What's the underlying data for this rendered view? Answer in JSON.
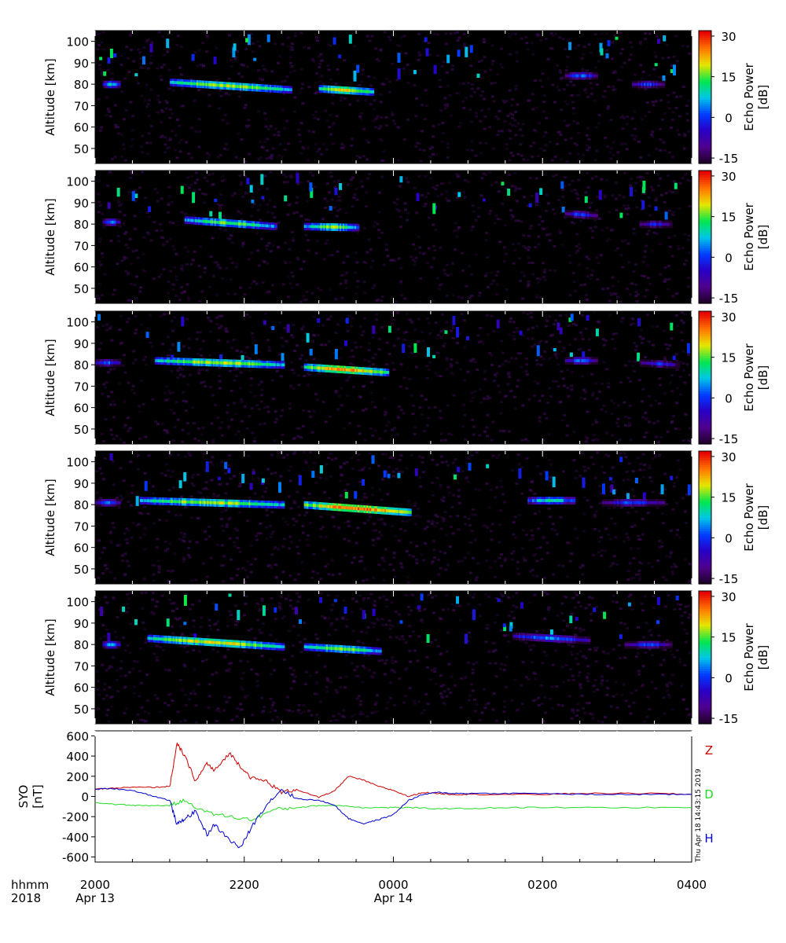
{
  "colors": {
    "background": "#000000",
    "noise": "#3a0a52",
    "Z": "#cc0000",
    "D": "#22dd22",
    "H": "#0000cc"
  },
  "radar": {
    "ylabel": "Altitude [km]",
    "yticks": [
      50,
      60,
      70,
      80,
      90,
      100
    ],
    "ylim": [
      43,
      105
    ],
    "colorbar_label": "Echo Power\n[dB]",
    "colorbar_ticks": [
      30,
      15,
      0,
      -15
    ],
    "colorbar_range": [
      -17,
      32
    ],
    "colormap": "rainbow (purple-blue-cyan-green-yellow-red)"
  },
  "time_axis": {
    "row1_label": "hhmm",
    "row2_label": "2018",
    "ticks": [
      "2000",
      "2200",
      "0000",
      "0200",
      "0400"
    ],
    "dates": [
      "Apr 13",
      "",
      "Apr 14",
      "",
      ""
    ],
    "range_hours": [
      20,
      28
    ]
  },
  "timestamp": "Thu Apr 18 14:43:15 2019",
  "chart_data": [
    {
      "type": "heatmap",
      "panel": 1,
      "ylabel": "Altitude [km]",
      "colorbar": "Echo Power [dB]",
      "echo_layers": [
        {
          "start_h": 20.1,
          "end_h": 20.3,
          "alt_start_km": 80,
          "alt_end_km": 80,
          "peak_db": 8
        },
        {
          "start_h": 21.0,
          "end_h": 22.6,
          "alt_start_km": 81,
          "alt_end_km": 77.5,
          "peak_db": 18
        },
        {
          "start_h": 23.0,
          "end_h": 23.7,
          "alt_start_km": 78,
          "alt_end_km": 76.5,
          "peak_db": 20
        },
        {
          "start_h": 26.3,
          "end_h": 26.7,
          "alt_start_km": 84,
          "alt_end_km": 84,
          "peak_db": 2
        },
        {
          "start_h": 27.2,
          "end_h": 27.6,
          "alt_start_km": 80,
          "alt_end_km": 80,
          "peak_db": 0
        }
      ]
    },
    {
      "type": "heatmap",
      "panel": 2,
      "ylabel": "Altitude [km]",
      "colorbar": "Echo Power [dB]",
      "echo_layers": [
        {
          "start_h": 20.1,
          "end_h": 20.3,
          "alt_start_km": 81,
          "alt_end_km": 81,
          "peak_db": 5
        },
        {
          "start_h": 21.2,
          "end_h": 22.4,
          "alt_start_km": 82,
          "alt_end_km": 79,
          "peak_db": 15
        },
        {
          "start_h": 22.8,
          "end_h": 23.5,
          "alt_start_km": 79,
          "alt_end_km": 78.5,
          "peak_db": 16
        },
        {
          "start_h": 26.3,
          "end_h": 26.7,
          "alt_start_km": 85,
          "alt_end_km": 84,
          "peak_db": 0
        },
        {
          "start_h": 27.3,
          "end_h": 27.7,
          "alt_start_km": 80,
          "alt_end_km": 80,
          "peak_db": -2
        }
      ]
    },
    {
      "type": "heatmap",
      "panel": 3,
      "ylabel": "Altitude [km]",
      "colorbar": "Echo Power [dB]",
      "echo_layers": [
        {
          "start_h": 20.0,
          "end_h": 20.3,
          "alt_start_km": 81,
          "alt_end_km": 81,
          "peak_db": 2
        },
        {
          "start_h": 20.8,
          "end_h": 22.5,
          "alt_start_km": 82,
          "alt_end_km": 80,
          "peak_db": 18
        },
        {
          "start_h": 22.8,
          "end_h": 23.9,
          "alt_start_km": 79,
          "alt_end_km": 76.5,
          "peak_db": 24
        },
        {
          "start_h": 26.3,
          "end_h": 26.7,
          "alt_start_km": 82,
          "alt_end_km": 82,
          "peak_db": 2
        },
        {
          "start_h": 27.3,
          "end_h": 27.8,
          "alt_start_km": 81,
          "alt_end_km": 80,
          "peak_db": -2
        }
      ]
    },
    {
      "type": "heatmap",
      "panel": 4,
      "ylabel": "Altitude [km]",
      "colorbar": "Echo Power [dB]",
      "echo_layers": [
        {
          "start_h": 20.0,
          "end_h": 20.3,
          "alt_start_km": 81,
          "alt_end_km": 81,
          "peak_db": 2
        },
        {
          "start_h": 20.6,
          "end_h": 22.5,
          "alt_start_km": 82,
          "alt_end_km": 80,
          "peak_db": 18
        },
        {
          "start_h": 22.8,
          "end_h": 24.2,
          "alt_start_km": 80,
          "alt_end_km": 76.5,
          "peak_db": 26
        },
        {
          "start_h": 25.8,
          "end_h": 26.4,
          "alt_start_km": 82,
          "alt_end_km": 82,
          "peak_db": 10
        },
        {
          "start_h": 26.8,
          "end_h": 27.6,
          "alt_start_km": 81,
          "alt_end_km": 81,
          "peak_db": 0
        }
      ]
    },
    {
      "type": "heatmap",
      "panel": 5,
      "ylabel": "Altitude [km]",
      "colorbar": "Echo Power [dB]",
      "echo_layers": [
        {
          "start_h": 20.1,
          "end_h": 20.3,
          "alt_start_km": 80,
          "alt_end_km": 80,
          "peak_db": 8
        },
        {
          "start_h": 20.7,
          "end_h": 22.5,
          "alt_start_km": 83,
          "alt_end_km": 79,
          "peak_db": 20
        },
        {
          "start_h": 22.8,
          "end_h": 23.8,
          "alt_start_km": 79,
          "alt_end_km": 77,
          "peak_db": 16
        },
        {
          "start_h": 25.6,
          "end_h": 26.6,
          "alt_start_km": 84,
          "alt_end_km": 82,
          "peak_db": 4
        },
        {
          "start_h": 27.1,
          "end_h": 27.7,
          "alt_start_km": 80,
          "alt_end_km": 80,
          "peak_db": 0
        }
      ]
    },
    {
      "type": "line",
      "panel": 6,
      "ylabel": "SYO\n[nT]",
      "ylim": [
        -650,
        650
      ],
      "yticks": [
        600,
        400,
        200,
        0,
        -200,
        -400,
        -600
      ],
      "series": [
        {
          "name": "Z",
          "x_hours": [
            20.0,
            20.2,
            20.5,
            20.8,
            21.0,
            21.1,
            21.2,
            21.35,
            21.5,
            21.6,
            21.8,
            21.95,
            22.1,
            22.3,
            22.5,
            22.7,
            23.0,
            23.2,
            23.4,
            23.6,
            23.8,
            24.0,
            24.2,
            24.4,
            24.6,
            24.8,
            25.0,
            25.5,
            26.0,
            26.5,
            27.0,
            27.5,
            28.0
          ],
          "values": [
            70,
            80,
            90,
            90,
            100,
            520,
            400,
            150,
            330,
            250,
            430,
            300,
            180,
            150,
            40,
            70,
            -10,
            50,
            200,
            160,
            100,
            60,
            0,
            40,
            30,
            20,
            20,
            20,
            20,
            30,
            30,
            30,
            20
          ]
        },
        {
          "name": "D",
          "x_hours": [
            20.0,
            20.3,
            20.6,
            21.0,
            21.2,
            21.5,
            21.8,
            22.1,
            22.4,
            22.7,
            23.0,
            23.3,
            23.6,
            23.9,
            24.2,
            24.5,
            25.0,
            25.5,
            26.0,
            27.0,
            28.0
          ],
          "values": [
            -60,
            -80,
            -90,
            -90,
            -40,
            -160,
            -200,
            -230,
            -130,
            -110,
            -90,
            -90,
            -110,
            -110,
            -110,
            -120,
            -120,
            -110,
            -110,
            -110,
            -110
          ]
        },
        {
          "name": "H",
          "x_hours": [
            20.0,
            20.2,
            20.5,
            20.8,
            21.0,
            21.1,
            21.2,
            21.35,
            21.5,
            21.6,
            21.8,
            21.95,
            22.1,
            22.3,
            22.5,
            22.7,
            23.0,
            23.2,
            23.4,
            23.6,
            23.8,
            24.0,
            24.2,
            24.4,
            24.6,
            24.8,
            25.0,
            25.5,
            26.0,
            26.5,
            27.0,
            27.5,
            28.0
          ],
          "values": [
            70,
            80,
            60,
            0,
            -40,
            -280,
            -220,
            -150,
            -380,
            -280,
            -430,
            -510,
            -300,
            -80,
            70,
            -20,
            -40,
            -80,
            -220,
            -270,
            -230,
            -180,
            -40,
            20,
            40,
            30,
            30,
            30,
            30,
            20,
            20,
            20,
            20
          ]
        }
      ]
    }
  ]
}
